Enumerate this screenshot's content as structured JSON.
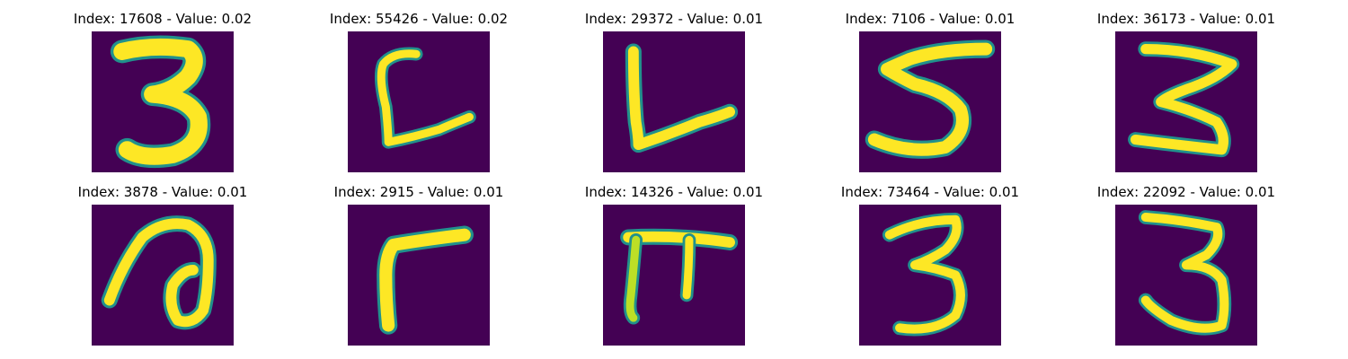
{
  "colors": {
    "background": "#440154",
    "mid": "#21918c",
    "stroke": "#fde725"
  },
  "panels": [
    {
      "title": "Index: 17608 - Value: 0.02",
      "digit": "3"
    },
    {
      "title": "Index: 55426 - Value: 0.02",
      "digit": "C"
    },
    {
      "title": "Index: 29372 - Value: 0.01",
      "digit": "L"
    },
    {
      "title": "Index: 7106 - Value: 0.01",
      "digit": "5"
    },
    {
      "title": "Index: 36173 - Value: 0.01",
      "digit": "3"
    },
    {
      "title": "Index: 3878 - Value: 0.01",
      "digit": "a"
    },
    {
      "title": "Index: 2915 - Value: 0.01",
      "digit": "7"
    },
    {
      "title": "Index: 14326 - Value: 0.01",
      "digit": "π"
    },
    {
      "title": "Index: 73464 - Value: 0.01",
      "digit": "3"
    },
    {
      "title": "Index: 22092 - Value: 0.01",
      "digit": "3"
    }
  ]
}
